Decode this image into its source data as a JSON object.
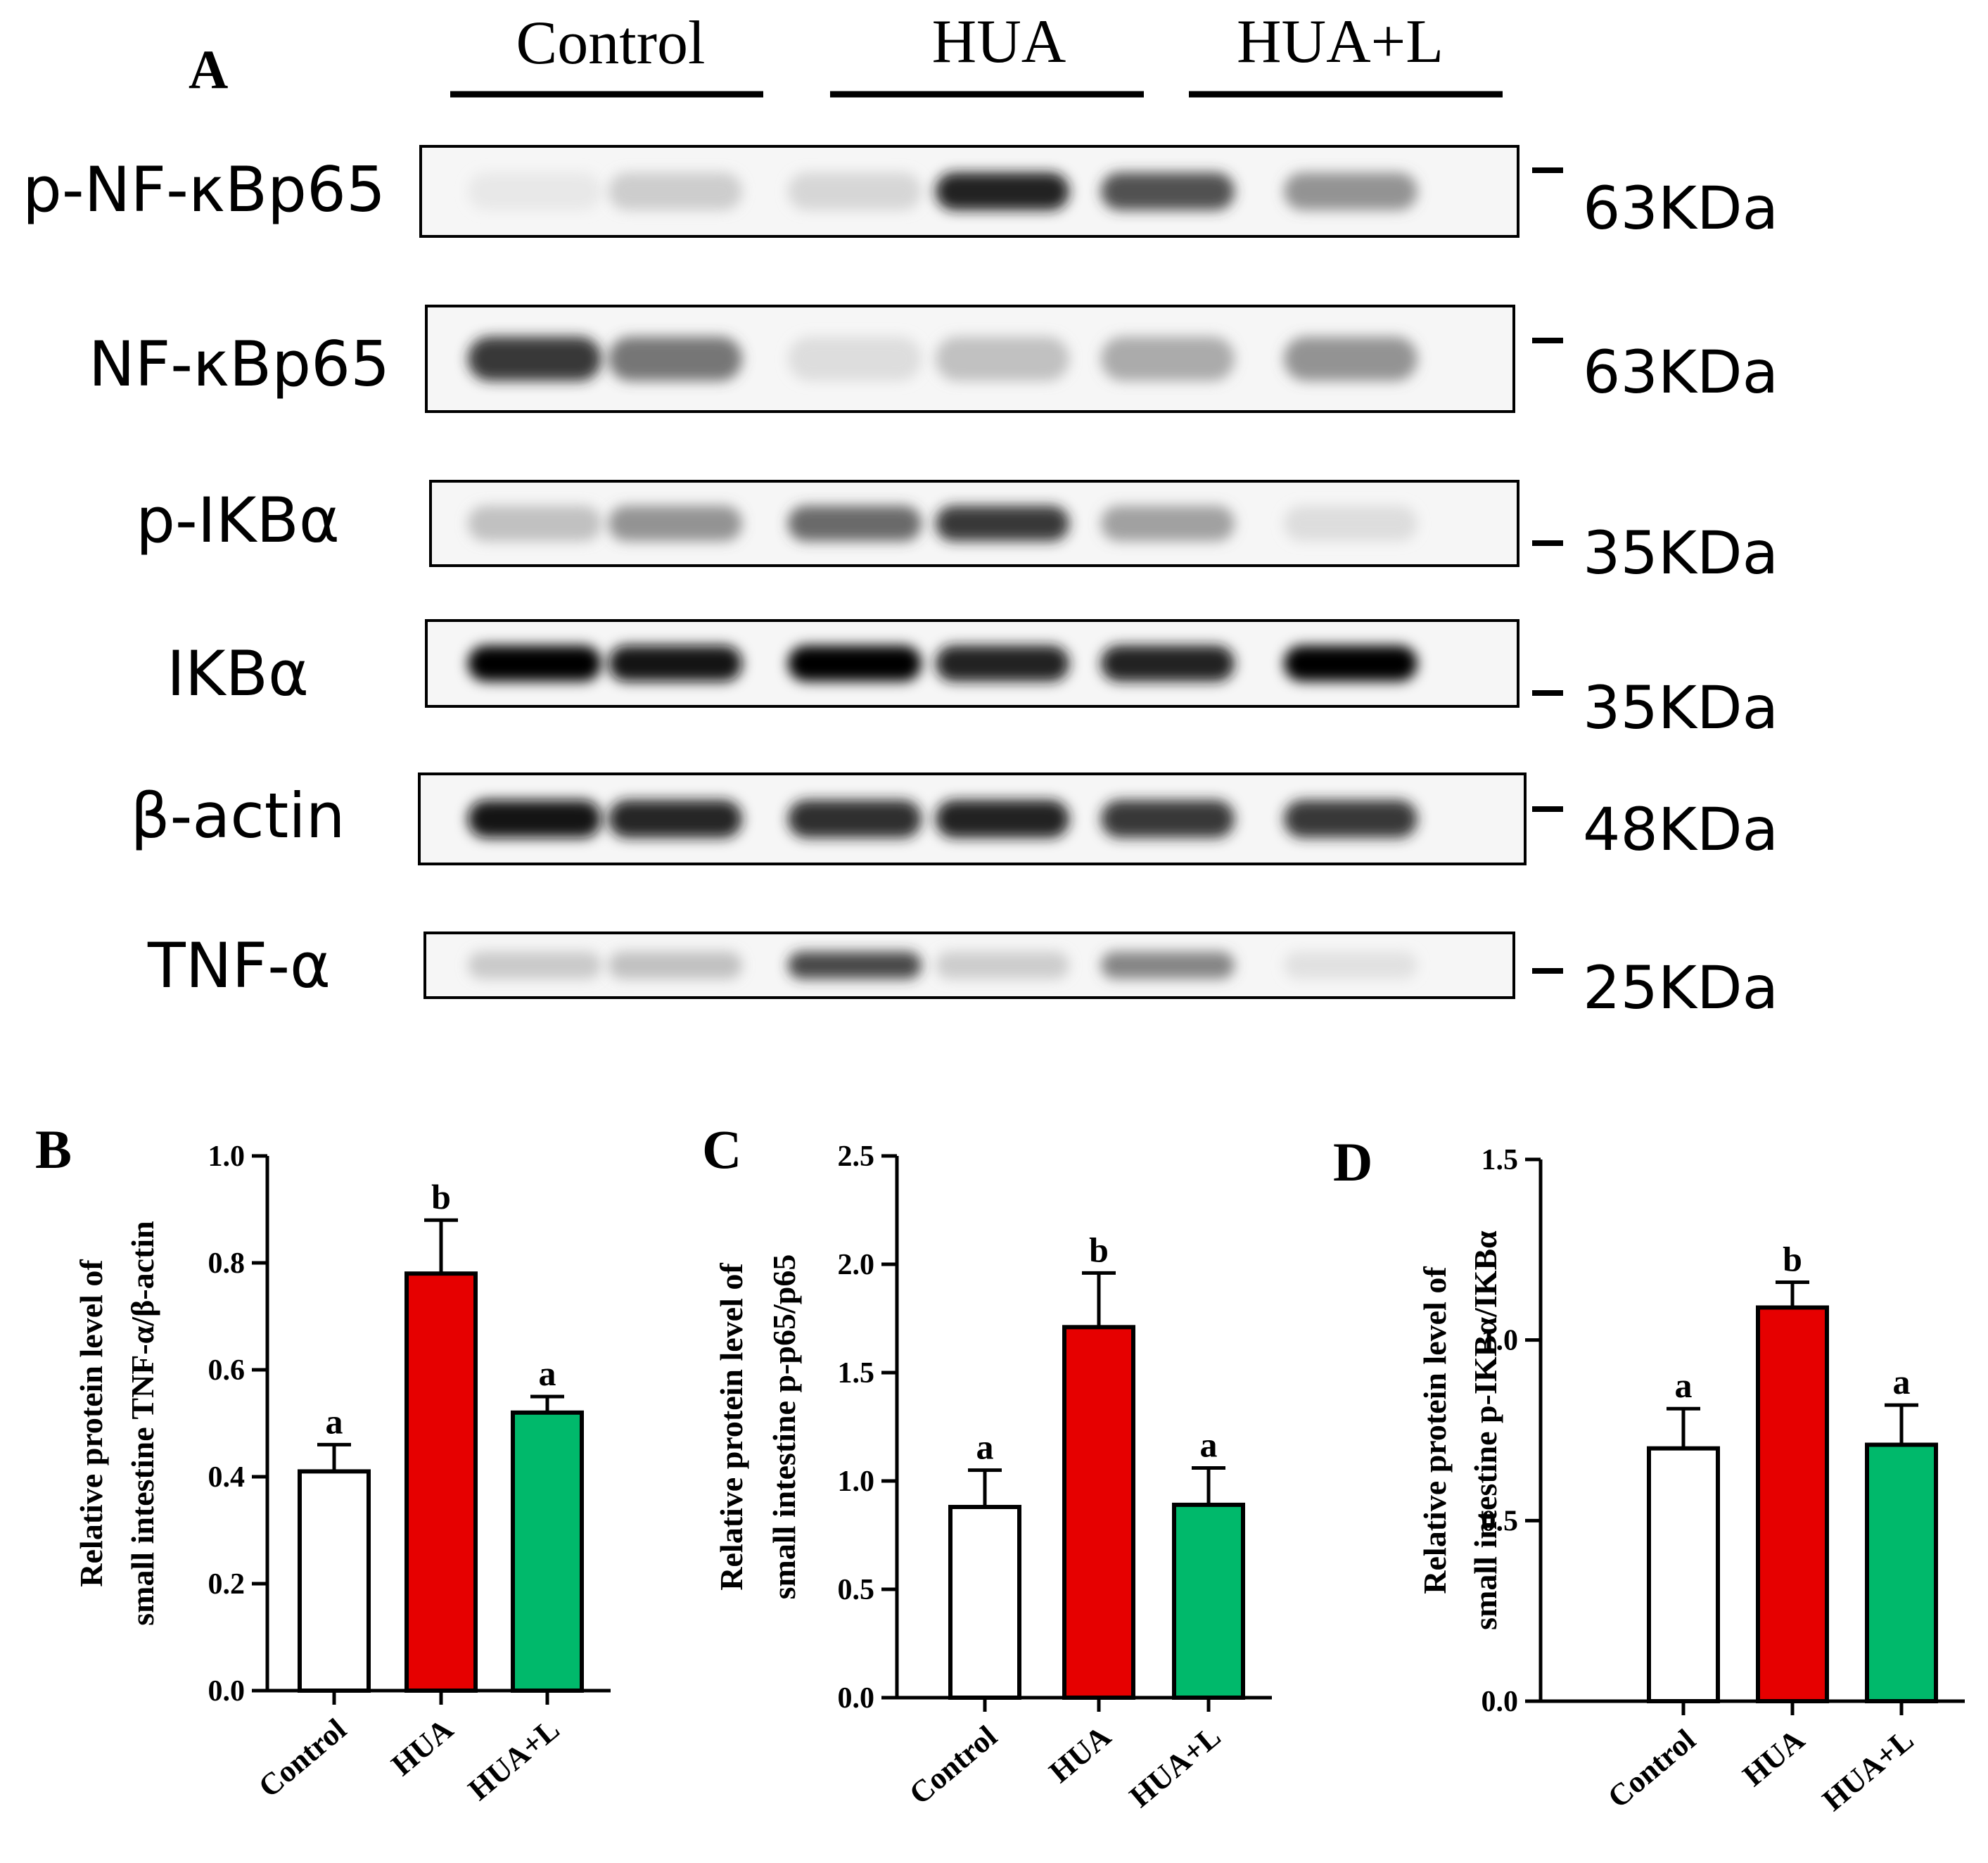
{
  "blot": {
    "panel_letter": "A",
    "groups": [
      "Control",
      "HUA",
      "HUA+L"
    ],
    "rows": [
      {
        "protein": "p-NF-κBp65",
        "marker": "63KDa",
        "intensities": [
          0.1,
          0.28,
          0.22,
          0.92,
          0.78,
          0.55
        ]
      },
      {
        "protein": "NF-κBp65",
        "marker": "63KDa",
        "intensities": [
          0.85,
          0.65,
          0.18,
          0.35,
          0.45,
          0.55
        ]
      },
      {
        "protein": "p-IKBα",
        "marker": "35KDa",
        "intensities": [
          0.35,
          0.55,
          0.7,
          0.85,
          0.5,
          0.18
        ]
      },
      {
        "protein": "IKBα",
        "marker": "35KDa",
        "intensities": [
          1.0,
          0.95,
          1.0,
          0.92,
          0.92,
          1.0
        ]
      },
      {
        "protein": "β-actin",
        "marker": "48KDa",
        "intensities": [
          0.95,
          0.9,
          0.88,
          0.92,
          0.85,
          0.85
        ]
      },
      {
        "protein": "TNF-α",
        "marker": "25KDa",
        "intensities": [
          0.3,
          0.35,
          0.8,
          0.28,
          0.6,
          0.15
        ]
      }
    ]
  },
  "colors": {
    "control": "#ffffff",
    "hua": "#e60000",
    "hua_l": "#00b96b",
    "axis": "#000000"
  },
  "chart_data": [
    {
      "panel_letter": "B",
      "type": "bar",
      "categories": [
        "Control",
        "HUA",
        "HUA+L"
      ],
      "values": [
        0.41,
        0.78,
        0.52
      ],
      "errors": [
        0.05,
        0.1,
        0.03
      ],
      "significance": [
        "a",
        "b",
        "a"
      ],
      "ylabel_line1": "Relative protein level of",
      "ylabel_line2": "small intestine TNF-α/β-actin",
      "ylim": [
        0,
        1.0
      ],
      "yticks": [
        "0.0",
        "0.2",
        "0.4",
        "0.6",
        "0.8",
        "1.0"
      ],
      "ytick_values": [
        0,
        0.2,
        0.4,
        0.6,
        0.8,
        1.0
      ]
    },
    {
      "panel_letter": "C",
      "type": "bar",
      "categories": [
        "Control",
        "HUA",
        "HUA+L"
      ],
      "values": [
        0.88,
        1.71,
        0.89
      ],
      "errors": [
        0.17,
        0.25,
        0.17
      ],
      "significance": [
        "a",
        "b",
        "a"
      ],
      "ylabel_line1": "Relative protein level of",
      "ylabel_line2": "small intestine p-p65/p65",
      "ylim": [
        0,
        2.5
      ],
      "yticks": [
        "0.0",
        "0.5",
        "1.0",
        "1.5",
        "2.0",
        "2.5"
      ],
      "ytick_values": [
        0,
        0.5,
        1.0,
        1.5,
        2.0,
        2.5
      ]
    },
    {
      "panel_letter": "D",
      "type": "bar",
      "categories": [
        "Control",
        "HUA",
        "HUA+L"
      ],
      "values": [
        0.7,
        1.09,
        0.71
      ],
      "errors": [
        0.11,
        0.07,
        0.11
      ],
      "significance": [
        "a",
        "b",
        "a"
      ],
      "ylabel_line1": "Relative protein level of",
      "ylabel_line2": "small intestine p-IKBα/IKBα",
      "ylim": [
        0,
        1.5
      ],
      "yticks": [
        "0.0",
        "0.5",
        "1.0",
        "1.5"
      ],
      "ytick_values": [
        0,
        0.5,
        1.0,
        1.5
      ]
    }
  ]
}
